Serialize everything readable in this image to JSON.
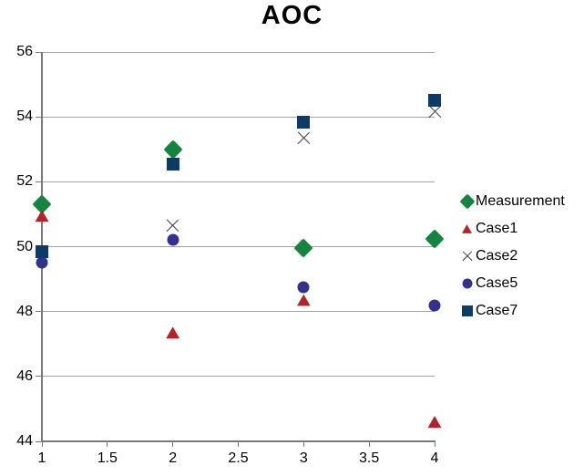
{
  "chart_data": {
    "type": "scatter",
    "title": "AOC",
    "xlabel": "",
    "ylabel": "",
    "xlim": [
      1,
      4
    ],
    "ylim": [
      44,
      56
    ],
    "x_ticks": [
      "1",
      "1.5",
      "2",
      "2.5",
      "3",
      "3.5",
      "4"
    ],
    "x_tick_values": [
      1,
      1.5,
      2,
      2.5,
      3,
      3.5,
      4
    ],
    "y_ticks": [
      "44",
      "46",
      "48",
      "50",
      "52",
      "54",
      "56"
    ],
    "y_tick_values": [
      44,
      46,
      48,
      50,
      52,
      54,
      56
    ],
    "grid": "horizontal-only",
    "legend_position": "right",
    "colors": {
      "axis": "#7a7a7a",
      "gridline": "#a3a3a3",
      "title": "#000000",
      "labels": "#000000"
    },
    "series": [
      {
        "name": "Measurement",
        "marker": "diamond",
        "color": "#168441",
        "x": [
          1,
          2,
          3,
          4
        ],
        "y": [
          51.3,
          53.0,
          49.95,
          50.25
        ]
      },
      {
        "name": "Case1",
        "marker": "triangle",
        "color": "#b22429",
        "x": [
          1,
          2,
          3,
          4
        ],
        "y": [
          50.95,
          47.35,
          48.35,
          44.6
        ]
      },
      {
        "name": "Case2",
        "marker": "x",
        "color": "#3d3d3d",
        "x": [
          2,
          3,
          4
        ],
        "y": [
          50.65,
          53.35,
          54.15
        ]
      },
      {
        "name": "Case5",
        "marker": "circle",
        "color": "#32318e",
        "x": [
          1,
          2,
          3,
          4
        ],
        "y": [
          49.5,
          50.2,
          48.75,
          48.2
        ]
      },
      {
        "name": "Case7",
        "marker": "square",
        "color": "#0e3a68",
        "x": [
          1,
          2,
          3,
          4
        ],
        "y": [
          49.85,
          52.55,
          53.85,
          54.5
        ]
      }
    ]
  }
}
